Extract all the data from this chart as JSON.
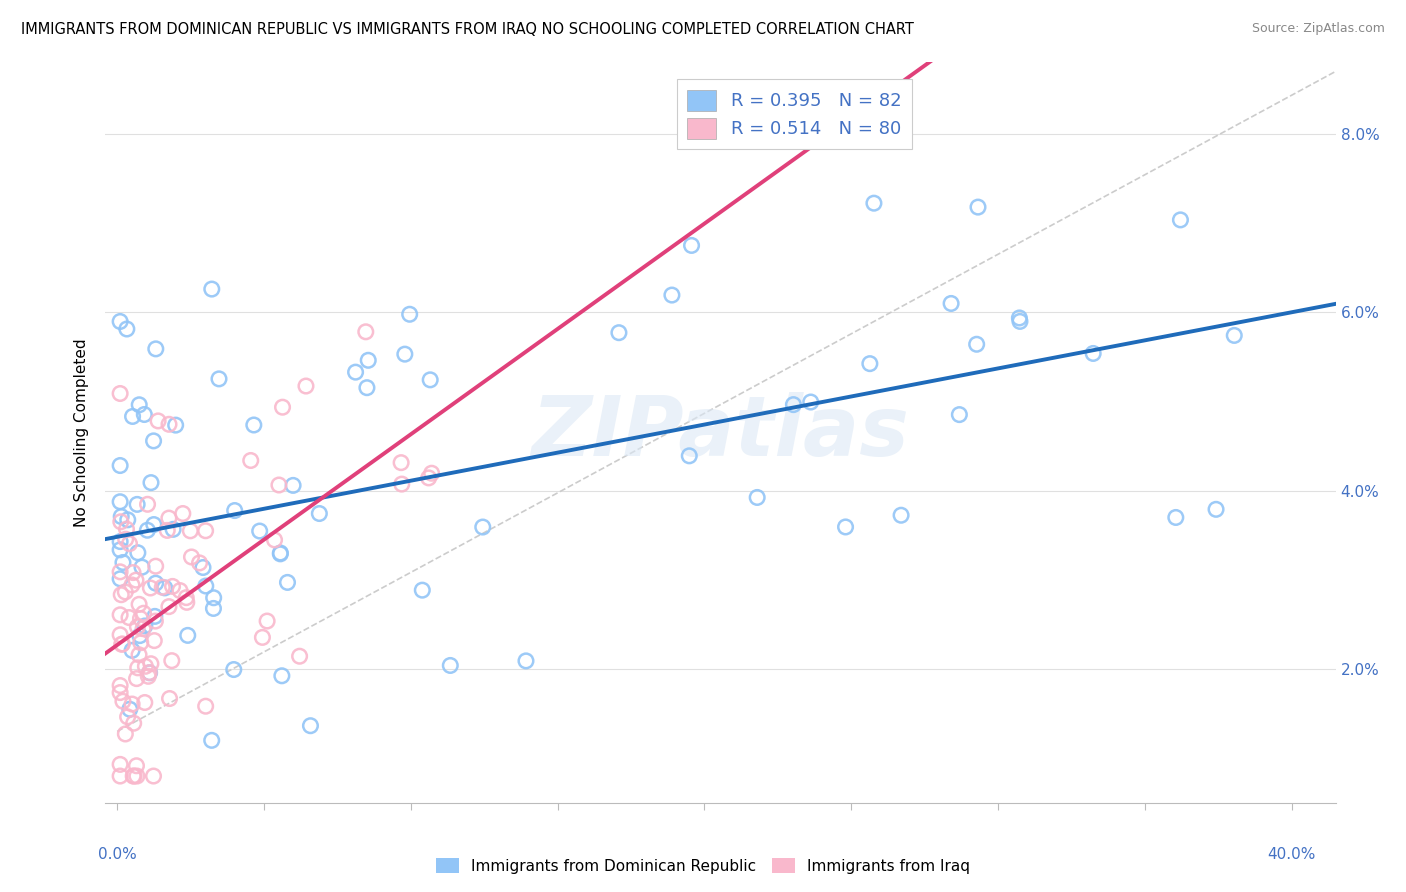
{
  "title": "IMMIGRANTS FROM DOMINICAN REPUBLIC VS IMMIGRANTS FROM IRAQ NO SCHOOLING COMPLETED CORRELATION CHART",
  "source": "Source: ZipAtlas.com",
  "ylabel": "No Schooling Completed",
  "xlim": [
    -0.004,
    0.415
  ],
  "ylim": [
    0.005,
    0.088
  ],
  "ytick_vals": [
    0.02,
    0.04,
    0.06,
    0.08
  ],
  "xtick_vals": [
    0.0,
    0.05,
    0.1,
    0.15,
    0.2,
    0.25,
    0.3,
    0.35,
    0.4
  ],
  "legend_blue_r": "0.395",
  "legend_blue_n": "82",
  "legend_pink_r": "0.514",
  "legend_pink_n": "80",
  "watermark": "ZIPatlas",
  "blue_scatter_color": "#92c5f7",
  "pink_scatter_color": "#f9b8cc",
  "blue_line_color": "#1f6bba",
  "pink_line_color": "#e0407a",
  "legend_text_color": "#4472c4",
  "axis_label_color": "#4472c4",
  "grid_color": "#e0e0e0",
  "ref_line_color": "#cccccc",
  "blue_label": "Immigrants from Dominican Republic",
  "pink_label": "Immigrants from Iraq"
}
